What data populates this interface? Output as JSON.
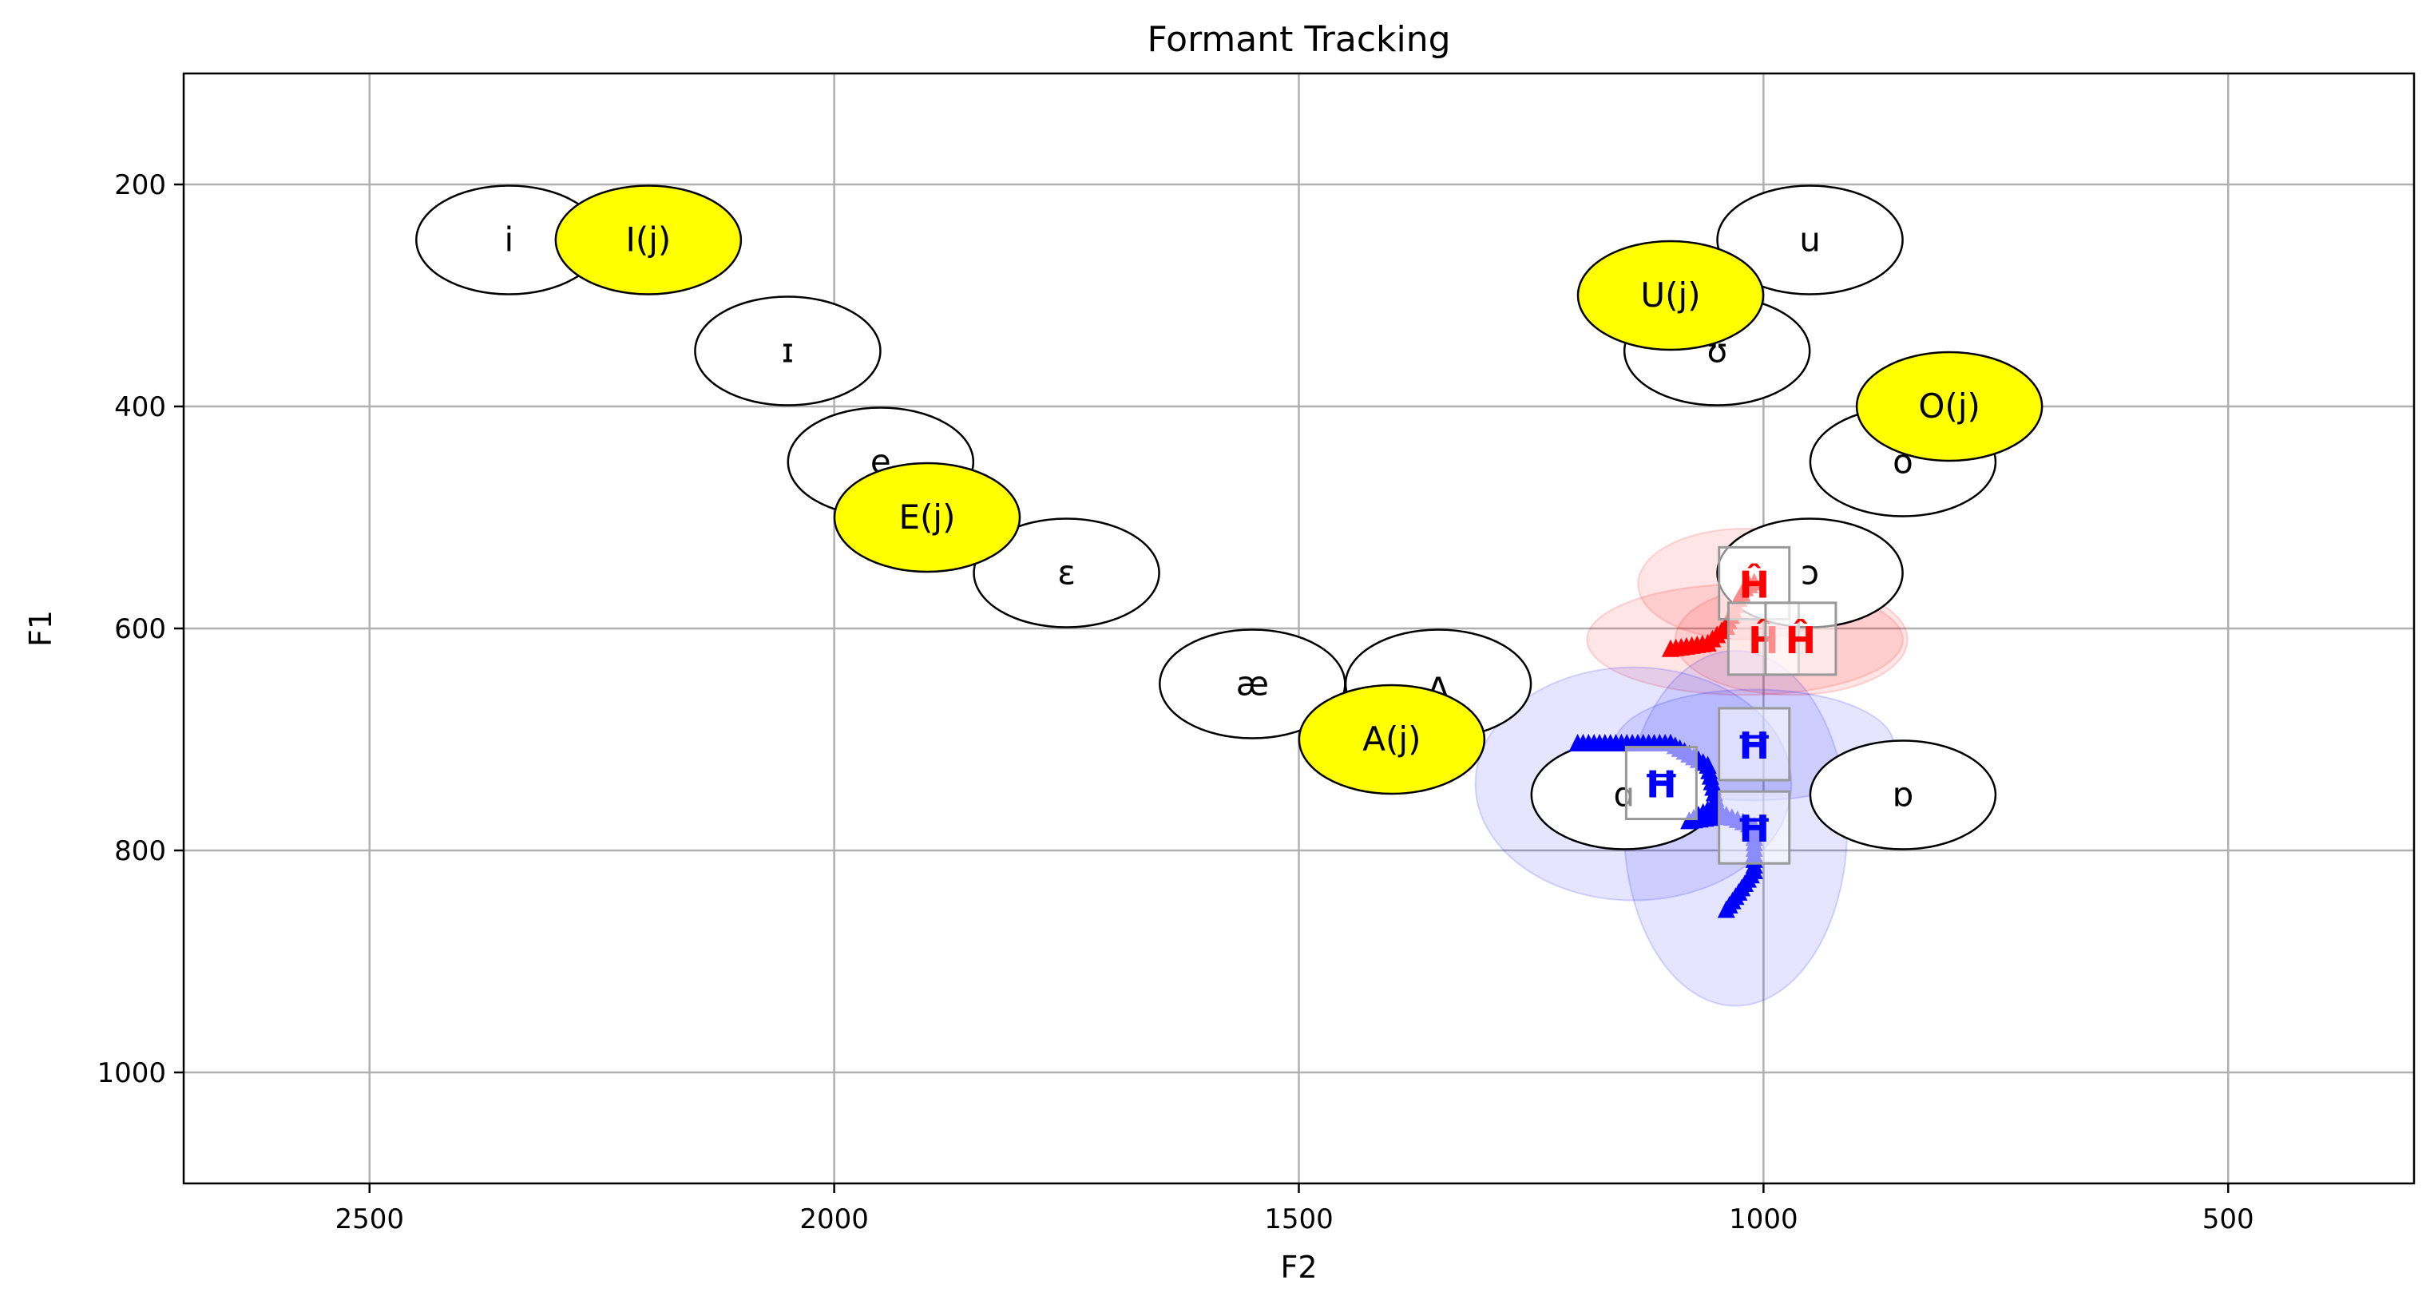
{
  "chart_data": {
    "type": "scatter",
    "title": "Formant Tracking",
    "xlabel": "F2",
    "ylabel": "F1",
    "xlim": [
      2700,
      300
    ],
    "ylim": [
      1100,
      100
    ],
    "x_inverted": true,
    "y_inverted": true,
    "xticks": [
      2500,
      2000,
      1500,
      1000,
      500
    ],
    "yticks": [
      200,
      400,
      600,
      800,
      1000
    ],
    "grid": true,
    "colors": {
      "reference_fill": "#ffffff",
      "highlight_fill": "#ffff00",
      "ellipse_stroke": "#000000",
      "red_track": "#ff0000",
      "blue_track": "#0000ff"
    },
    "reference_vowels": [
      {
        "label": "i",
        "f2": 2350,
        "f1": 250
      },
      {
        "label": "ɪ",
        "f2": 2050,
        "f1": 350
      },
      {
        "label": "e",
        "f2": 1950,
        "f1": 450
      },
      {
        "label": "ɛ",
        "f2": 1750,
        "f1": 550
      },
      {
        "label": "æ",
        "f2": 1550,
        "f1": 650
      },
      {
        "label": "ʌ",
        "f2": 1350,
        "f1": 650
      },
      {
        "label": "ɑ",
        "f2": 1150,
        "f1": 750
      },
      {
        "label": "ɒ",
        "f2": 850,
        "f1": 750
      },
      {
        "label": "ɔ",
        "f2": 950,
        "f1": 550
      },
      {
        "label": "o",
        "f2": 850,
        "f1": 450
      },
      {
        "label": "ʊ",
        "f2": 1050,
        "f1": 350
      },
      {
        "label": "u",
        "f2": 950,
        "f1": 250
      }
    ],
    "highlighted_vowels": [
      {
        "label": "I(j)",
        "f2": 2200,
        "f1": 250
      },
      {
        "label": "E(j)",
        "f2": 1900,
        "f1": 500
      },
      {
        "label": "A(j)",
        "f2": 1400,
        "f1": 700
      },
      {
        "label": "U(j)",
        "f2": 1100,
        "f1": 300
      },
      {
        "label": "O(j)",
        "f2": 800,
        "f1": 400
      }
    ],
    "series": [
      {
        "color": "#ff0000",
        "glyph": "Ĥ",
        "points": [
          [
            1010,
            560
          ],
          [
            1000,
            610
          ],
          [
            960,
            610
          ]
        ],
        "spread": [
          [
            1020,
            560,
            230,
            100
          ],
          [
            1020,
            610,
            340,
            100
          ],
          [
            970,
            610,
            250,
            100
          ]
        ],
        "track": [
          [
            1100,
            620
          ],
          [
            1060,
            615
          ],
          [
            1040,
            600
          ],
          [
            1030,
            580
          ],
          [
            1020,
            565
          ],
          [
            1010,
            560
          ]
        ]
      },
      {
        "color": "#0000ff",
        "glyph": "Ħ",
        "points": [
          [
            1110,
            740
          ],
          [
            1010,
            705
          ],
          [
            1010,
            780
          ]
        ],
        "spread": [
          [
            1140,
            740,
            340,
            210
          ],
          [
            1030,
            780,
            240,
            320
          ],
          [
            1010,
            705,
            300,
            100
          ]
        ],
        "track": [
          [
            1200,
            705
          ],
          [
            1100,
            705
          ],
          [
            1060,
            725
          ],
          [
            1050,
            760
          ],
          [
            1070,
            770
          ],
          [
            1080,
            775
          ],
          [
            1040,
            770
          ],
          [
            1010,
            780
          ],
          [
            1010,
            820
          ],
          [
            1040,
            855
          ]
        ]
      }
    ]
  }
}
